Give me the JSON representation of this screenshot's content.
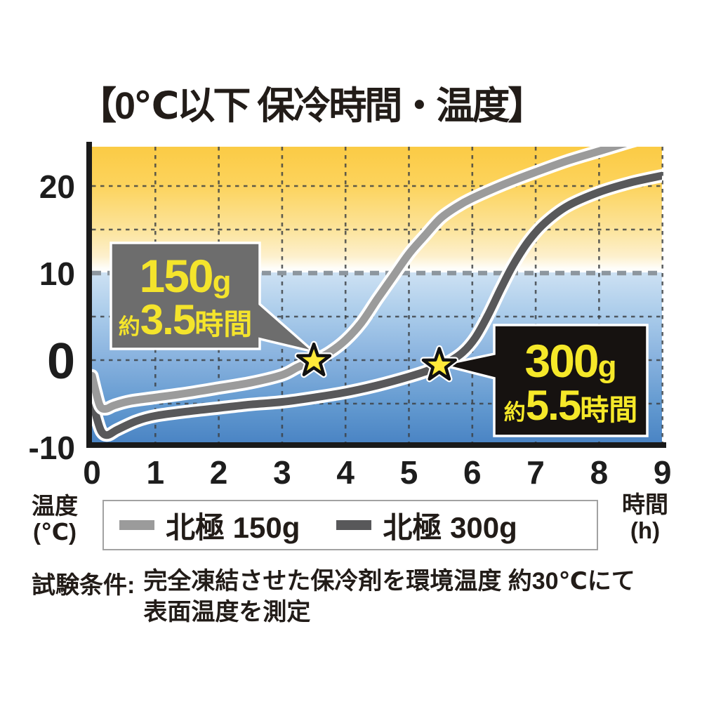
{
  "title": "【0℃以下 保冷時間・温度】",
  "footnote": {
    "prefix": "試験条件:",
    "line1": "完全凍結させた保冷剤を環境温度 約30℃にて",
    "line2": "表面温度を測定"
  },
  "colors": {
    "warm_top": "#fbcb45",
    "cold_bottom": "#4a84c4",
    "star_fill": "#ffe93a",
    "callout_text_yellow": "#f4e42c",
    "axis_black": "#1a1a1a",
    "gridline": "#3c4043",
    "boundary_line_gray": "#8d969e"
  },
  "chart_data": {
    "type": "line",
    "title": "【0℃以下 保冷時間・温度】",
    "xlabel_unit": [
      "時間",
      "(h)"
    ],
    "ylabel_unit": [
      "温度",
      "(℃)"
    ],
    "xlim": [
      0,
      9
    ],
    "ylim": [
      -9.5,
      24.6
    ],
    "x_ticks": [
      "0",
      "1",
      "2",
      "3",
      "4",
      "5",
      "6",
      "7",
      "8",
      "9"
    ],
    "y_ticks": [
      {
        "label": "20",
        "value": 20,
        "emphasis": false
      },
      {
        "label": "10",
        "value": 10,
        "emphasis": false
      },
      {
        "label": "0",
        "value": 0,
        "emphasis": true
      },
      {
        "label": "-10",
        "value": -10,
        "emphasis": false
      }
    ],
    "x_gridlines": [
      1,
      2,
      3,
      4,
      5,
      6,
      7,
      8,
      9
    ],
    "y_gridlines": [
      20,
      15,
      5,
      0,
      -5
    ],
    "y_boundary_line": 10,
    "grid": "dashed",
    "legend_position": "bottom",
    "series": [
      {
        "name": "北極 150g",
        "color": "#9b9b9b",
        "points": [
          [
            0,
            -1.8
          ],
          [
            0.06,
            -3.6
          ],
          [
            0.13,
            -5.3
          ],
          [
            0.22,
            -5.6
          ],
          [
            0.35,
            -5.2
          ],
          [
            0.6,
            -4.7
          ],
          [
            1,
            -4.3
          ],
          [
            1.5,
            -3.8
          ],
          [
            2,
            -3.2
          ],
          [
            2.5,
            -2.6
          ],
          [
            3,
            -1.7
          ],
          [
            3.25,
            -0.8
          ],
          [
            3.5,
            -0.05
          ],
          [
            3.75,
            0.9
          ],
          [
            4,
            2.3
          ],
          [
            4.25,
            4.3
          ],
          [
            4.5,
            7.0
          ],
          [
            4.75,
            9.6
          ],
          [
            5,
            12.2
          ],
          [
            5.25,
            14.3
          ],
          [
            5.5,
            16.3
          ],
          [
            5.75,
            17.6
          ],
          [
            6,
            18.6
          ],
          [
            6.5,
            20.2
          ],
          [
            7,
            21.6
          ],
          [
            7.5,
            22.9
          ],
          [
            8,
            24.0
          ],
          [
            8.5,
            25.1
          ],
          [
            8.9,
            25.9
          ]
        ]
      },
      {
        "name": "北極 300g",
        "color": "#58585a",
        "points": [
          [
            0,
            -4.4
          ],
          [
            0.07,
            -6.5
          ],
          [
            0.15,
            -8.2
          ],
          [
            0.25,
            -8.6
          ],
          [
            0.4,
            -8.0
          ],
          [
            0.7,
            -7.0
          ],
          [
            1,
            -6.4
          ],
          [
            1.5,
            -5.9
          ],
          [
            2,
            -5.5
          ],
          [
            2.5,
            -5.1
          ],
          [
            3,
            -4.8
          ],
          [
            3.5,
            -4.3
          ],
          [
            4,
            -3.7
          ],
          [
            4.5,
            -2.9
          ],
          [
            5,
            -1.9
          ],
          [
            5.3,
            -1.2
          ],
          [
            5.6,
            -0.3
          ],
          [
            5.85,
            0.9
          ],
          [
            6.05,
            2.6
          ],
          [
            6.25,
            5.2
          ],
          [
            6.45,
            8.2
          ],
          [
            6.65,
            11.0
          ],
          [
            6.9,
            13.8
          ],
          [
            7.15,
            15.8
          ],
          [
            7.5,
            17.7
          ],
          [
            8,
            19.3
          ],
          [
            8.5,
            20.4
          ],
          [
            9,
            21.2
          ]
        ]
      }
    ],
    "annotations": [
      {
        "main": "150g",
        "sub_prefix": "約",
        "sub_value": "3.5",
        "sub_suffix": "時間",
        "anchor_h": 3.5,
        "anchor_t": -0.1,
        "style": "gray"
      },
      {
        "main": "300g",
        "sub_prefix": "約",
        "sub_value": "5.5",
        "sub_suffix": "時間",
        "anchor_h": 5.48,
        "anchor_t": -0.6,
        "style": "black"
      }
    ]
  }
}
